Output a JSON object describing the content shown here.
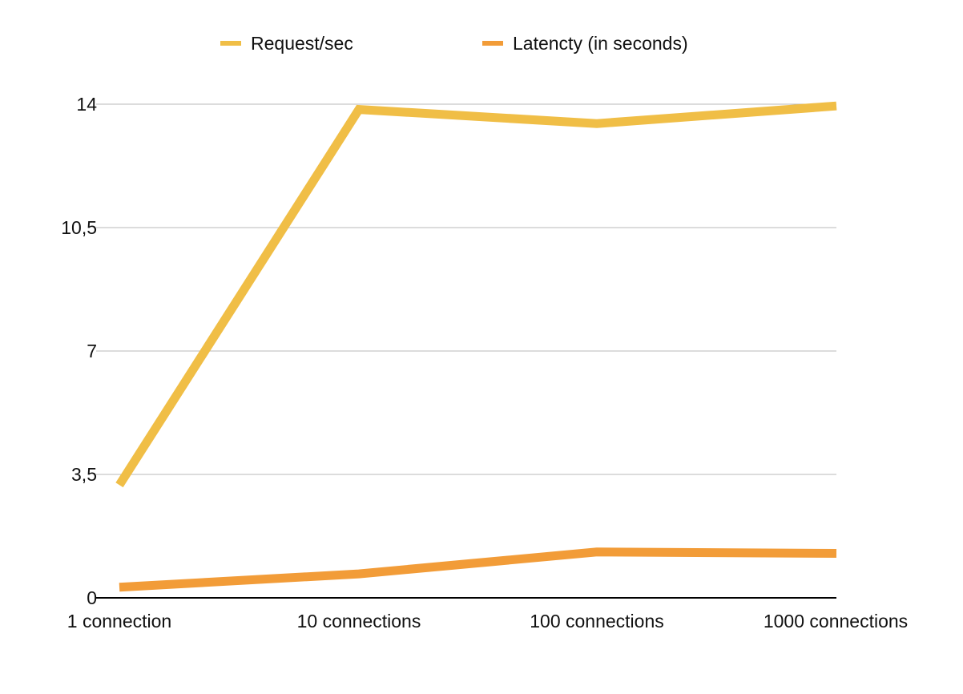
{
  "chart_data": {
    "type": "line",
    "title": "",
    "xlabel": "",
    "ylabel": "",
    "categories": [
      "1 connection",
      "10 connections",
      "100 connections",
      "1000 connections"
    ],
    "y_ticks": [
      {
        "value": 0,
        "label": "0"
      },
      {
        "value": 3.5,
        "label": "3,5"
      },
      {
        "value": 7,
        "label": "7"
      },
      {
        "value": 10.5,
        "label": "10,5"
      },
      {
        "value": 14,
        "label": "14"
      }
    ],
    "ylim": [
      0,
      14
    ],
    "grid": true,
    "legend_position": "top",
    "series": [
      {
        "name": "Request/sec",
        "color": "#f0be46",
        "values": [
          3.2,
          13.85,
          13.45,
          13.95
        ]
      },
      {
        "name": "Latencty (in seconds)",
        "color": "#f29c38",
        "values": [
          0.3,
          0.68,
          1.3,
          1.26
        ]
      }
    ]
  }
}
